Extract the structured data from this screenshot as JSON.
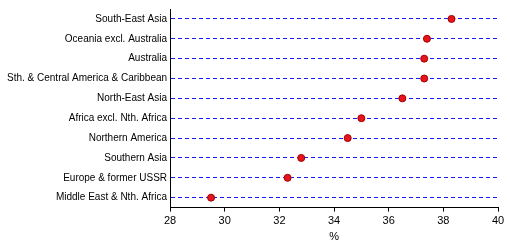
{
  "chart_data": {
    "type": "dot",
    "orientation": "horizontal",
    "categories": [
      "South-East Asia",
      "Oceania excl. Australia",
      "Australia",
      "Sth. & Central America & Caribbean",
      "North-East Asia",
      "Africa excl. Nth. Africa",
      "Northern America",
      "Southern Asia",
      "Europe & former USSR",
      "Middle East & Nth. Africa"
    ],
    "values": [
      38.3,
      37.4,
      37.3,
      37.3,
      36.5,
      35.0,
      34.5,
      32.8,
      32.3,
      29.5
    ],
    "color": "#e8141c",
    "xlabel": "%",
    "xlim": [
      28,
      40
    ],
    "xticks": [
      28,
      30,
      32,
      34,
      36,
      38,
      40
    ],
    "grid": true
  }
}
